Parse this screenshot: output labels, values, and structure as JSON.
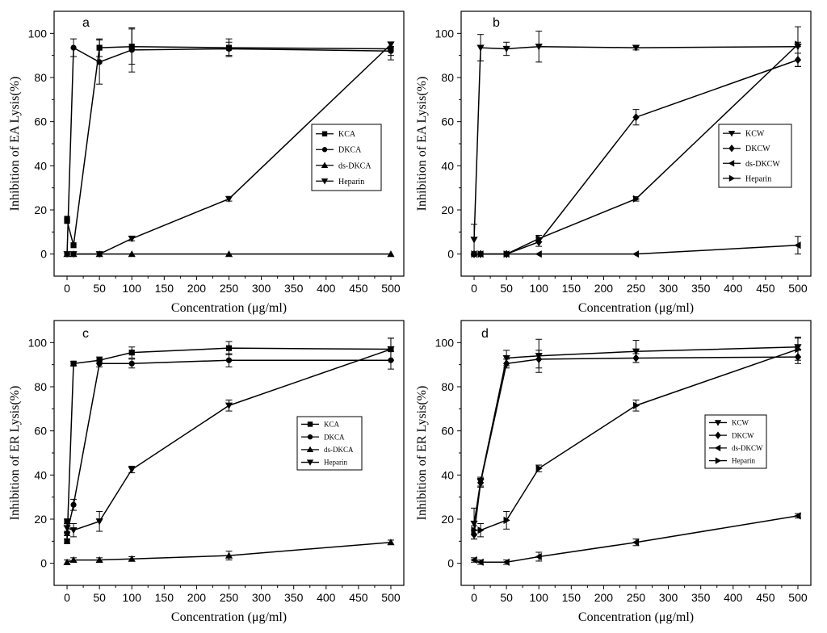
{
  "chart_data": [
    {
      "panel": "a",
      "type": "line",
      "xlabel": "Concentration (μg/ml)",
      "ylabel": "Inhibition of EA Lysis(%)",
      "xlim": [
        -20,
        520
      ],
      "ylim": [
        -10,
        110
      ],
      "xticks": [
        0,
        50,
        100,
        150,
        200,
        250,
        300,
        350,
        400,
        450,
        500
      ],
      "yticks": [
        0,
        20,
        40,
        60,
        80,
        100
      ],
      "legend_position": "middle-right",
      "series": [
        {
          "name": "KCA",
          "marker": "square",
          "x": [
            0,
            0,
            10,
            50,
            100,
            250,
            500
          ],
          "y": [
            16,
            15,
            4,
            93.5,
            94,
            93.5,
            93
          ],
          "err": [
            0,
            0,
            0,
            4,
            8,
            4,
            3
          ]
        },
        {
          "name": "DKCA",
          "marker": "circle",
          "x": [
            0,
            10,
            50,
            100,
            250,
            500
          ],
          "y": [
            0,
            93.5,
            87,
            92.5,
            93,
            92
          ],
          "err": [
            0,
            4,
            10,
            10,
            3,
            4
          ]
        },
        {
          "name": "ds-DKCA",
          "marker": "triangle-up",
          "x": [
            0,
            10,
            50,
            100,
            250,
            500
          ],
          "y": [
            0,
            0,
            0,
            0,
            0,
            0
          ],
          "err": [
            0,
            0,
            0,
            0,
            0,
            0
          ]
        },
        {
          "name": "Heparin",
          "marker": "triangle-down",
          "x": [
            0,
            10,
            50,
            100,
            250,
            500
          ],
          "y": [
            0,
            0,
            0,
            7,
            25,
            95
          ],
          "err": [
            0,
            0,
            0,
            1,
            1,
            1
          ]
        }
      ]
    },
    {
      "panel": "b",
      "type": "line",
      "xlabel": "Concentration (μg/ml)",
      "ylabel": "Inhibition of EA Lysis(%)",
      "xlim": [
        -20,
        520
      ],
      "ylim": [
        -10,
        110
      ],
      "xticks": [
        0,
        50,
        100,
        150,
        200,
        250,
        300,
        350,
        400,
        450,
        500
      ],
      "yticks": [
        0,
        20,
        40,
        60,
        80,
        100
      ],
      "legend_position": "middle-right",
      "series": [
        {
          "name": "KCW",
          "marker": "triangle-down",
          "x": [
            0,
            10,
            50,
            100,
            250,
            500
          ],
          "y": [
            6.5,
            93.5,
            93,
            94,
            93.5,
            94
          ],
          "err": [
            7,
            6,
            3,
            7,
            1,
            9
          ]
        },
        {
          "name": "DKCW",
          "marker": "diamond",
          "x": [
            0,
            10,
            50,
            100,
            250,
            500
          ],
          "y": [
            0,
            0,
            0,
            5.5,
            62,
            88
          ],
          "err": [
            0,
            0,
            0,
            2,
            3.5,
            3
          ]
        },
        {
          "name": "ds-DKCW",
          "marker": "triangle-left",
          "x": [
            0,
            10,
            50,
            100,
            250,
            500
          ],
          "y": [
            0,
            0,
            0,
            0,
            0,
            4
          ],
          "err": [
            0,
            0,
            0,
            0,
            0,
            4
          ]
        },
        {
          "name": "Heparin",
          "marker": "triangle-right",
          "x": [
            0,
            10,
            50,
            100,
            250,
            500
          ],
          "y": [
            0,
            0,
            0,
            7,
            25,
            95
          ],
          "err": [
            0,
            0,
            0,
            1.5,
            1,
            1
          ]
        }
      ]
    },
    {
      "panel": "c",
      "type": "line",
      "xlabel": "Concentration (μg/ml)",
      "ylabel": "Inhibition of ER Lysis(%)",
      "xlim": [
        -20,
        520
      ],
      "ylim": [
        -10,
        110
      ],
      "xticks": [
        0,
        50,
        100,
        150,
        200,
        250,
        300,
        350,
        400,
        450,
        500
      ],
      "yticks": [
        0,
        20,
        40,
        60,
        80,
        100
      ],
      "legend_position": "middle-right",
      "series": [
        {
          "name": "KCA",
          "marker": "square",
          "x": [
            0,
            0,
            10,
            50,
            100,
            250,
            500
          ],
          "y": [
            19,
            10,
            90.5,
            92,
            95.5,
            97.5,
            97
          ],
          "err": [
            1,
            1,
            1,
            1.5,
            2.5,
            3,
            5
          ]
        },
        {
          "name": "DKCA",
          "marker": "circle",
          "x": [
            0,
            10,
            50,
            100,
            250,
            500
          ],
          "y": [
            13.5,
            26.5,
            90.5,
            90.5,
            92,
            92
          ],
          "err": [
            1,
            2.5,
            1.5,
            2,
            3,
            4
          ]
        },
        {
          "name": "ds-DKCA",
          "marker": "triangle-up",
          "x": [
            0,
            10,
            50,
            100,
            250,
            500
          ],
          "y": [
            0.5,
            1.5,
            1.5,
            2,
            3.5,
            9.5
          ],
          "err": [
            1,
            1,
            1,
            1,
            2,
            1
          ]
        },
        {
          "name": "Heparin",
          "marker": "triangle-down",
          "x": [
            0,
            10,
            50,
            100,
            250,
            500
          ],
          "y": [
            16,
            15,
            19,
            42.5,
            71.5,
            97
          ],
          "err": [
            2,
            3,
            4.5,
            1.5,
            2.5,
            5
          ]
        }
      ]
    },
    {
      "panel": "d",
      "type": "line",
      "xlabel": "Concentration (μg/ml)",
      "ylabel": "Inhibition of ER Lysis(%)",
      "xlim": [
        -20,
        520
      ],
      "ylim": [
        -10,
        110
      ],
      "xticks": [
        0,
        50,
        100,
        150,
        200,
        250,
        300,
        350,
        400,
        450,
        500
      ],
      "yticks": [
        0,
        20,
        40,
        60,
        80,
        100
      ],
      "legend_position": "middle-right",
      "series": [
        {
          "name": "KCW",
          "marker": "triangle-down",
          "x": [
            0,
            10,
            50,
            100,
            250,
            500
          ],
          "y": [
            18,
            37,
            93,
            94,
            96,
            98
          ],
          "err": [
            7,
            2,
            3.5,
            7.5,
            5,
            4.5
          ]
        },
        {
          "name": "DKCW",
          "marker": "diamond",
          "x": [
            0,
            10,
            50,
            100,
            250,
            500
          ],
          "y": [
            13,
            36.5,
            90.5,
            92.5,
            93,
            93.5
          ],
          "err": [
            2,
            2,
            2,
            4,
            2,
            3
          ]
        },
        {
          "name": "ds-DKCW",
          "marker": "triangle-left",
          "x": [
            0,
            10,
            50,
            100,
            250,
            500
          ],
          "y": [
            1.5,
            0.5,
            0.5,
            3,
            9.5,
            21.5
          ],
          "err": [
            1,
            1,
            1,
            2,
            1.5,
            1
          ]
        },
        {
          "name": "Heparin",
          "marker": "triangle-right",
          "x": [
            0,
            10,
            50,
            100,
            250,
            500
          ],
          "y": [
            15,
            15,
            19.5,
            43,
            71.5,
            97
          ],
          "err": [
            2,
            3,
            4,
            1.5,
            2.5,
            5
          ]
        }
      ]
    }
  ]
}
